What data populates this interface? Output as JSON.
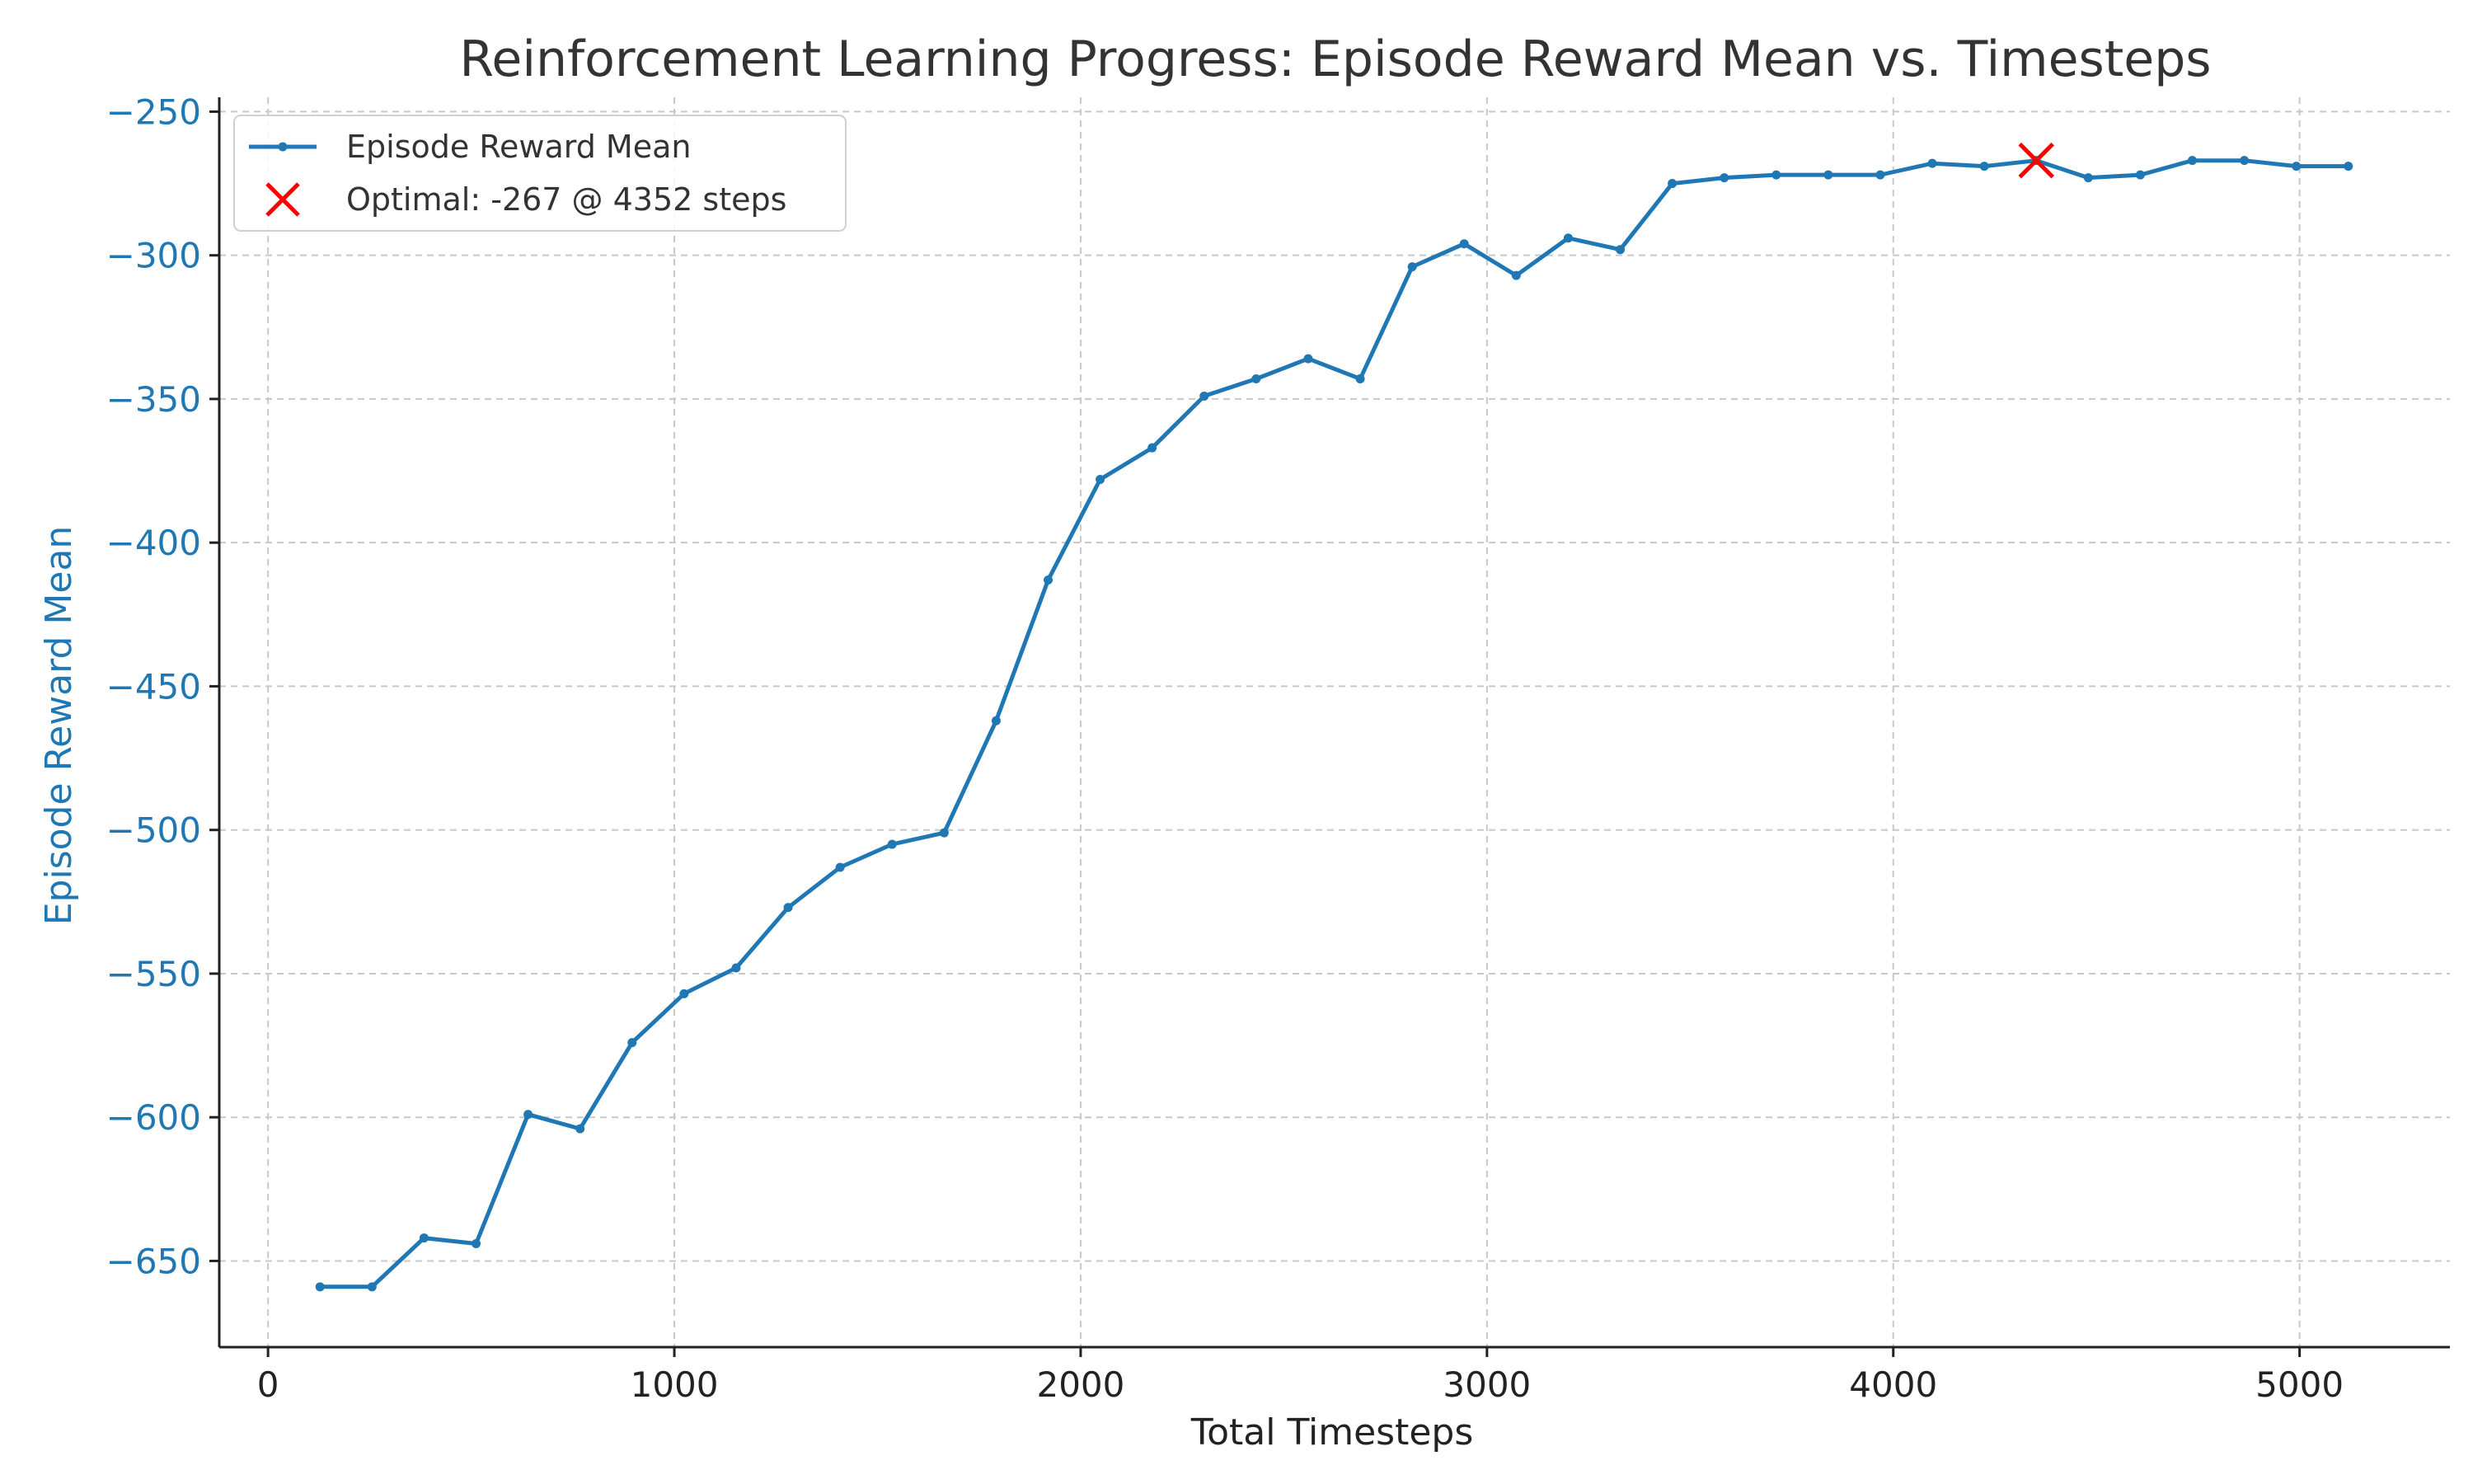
{
  "chart_data": {
    "type": "line",
    "title": "Reinforcement Learning Progress: Episode Reward Mean vs. Timesteps",
    "xlabel": "Total Timesteps",
    "ylabel": "Episode Reward Mean",
    "xlim": [
      -120,
      5370
    ],
    "ylim": [
      -680,
      -245
    ],
    "xticks": [
      0,
      1000,
      2000,
      3000,
      4000,
      5000
    ],
    "yticks": [
      -250,
      -300,
      -350,
      -400,
      -450,
      -500,
      -550,
      -600,
      -650
    ],
    "grid": true,
    "legend_position": "top-left",
    "series": [
      {
        "name": "Episode Reward Mean",
        "color": "#1f77b4",
        "x": [
          128,
          256,
          384,
          512,
          640,
          768,
          896,
          1024,
          1152,
          1280,
          1408,
          1536,
          1664,
          1792,
          1920,
          2048,
          2176,
          2304,
          2432,
          2560,
          2688,
          2816,
          2944,
          3072,
          3200,
          3328,
          3456,
          3584,
          3712,
          3840,
          3968,
          4096,
          4224,
          4352,
          4480,
          4608,
          4736,
          4864,
          4992,
          5120
        ],
        "y": [
          -659,
          -659,
          -642,
          -644,
          -599,
          -604,
          -574,
          -557,
          -548,
          -527,
          -513,
          -505,
          -501,
          -462,
          -413,
          -378,
          -367,
          -349,
          -343,
          -336,
          -343,
          -304,
          -296,
          -307,
          -294,
          -298,
          -275,
          -273,
          -272,
          -272,
          -272,
          -268,
          -269,
          -267,
          -273,
          -272,
          -267,
          -267,
          -269,
          -269
        ]
      }
    ],
    "annotations": [
      {
        "type": "marker",
        "marker": "x",
        "color": "#ff0000",
        "x": 4352,
        "y": -267,
        "label": "Optimal: -267 @ 4352 steps"
      }
    ],
    "tick_labels": {
      "x": [
        "0",
        "1000",
        "2000",
        "3000",
        "4000",
        "5000"
      ],
      "y": [
        "−250",
        "−300",
        "−350",
        "−400",
        "−450",
        "−500",
        "−550",
        "−600",
        "−650"
      ]
    },
    "ylabel_color": "#1f77b4"
  }
}
